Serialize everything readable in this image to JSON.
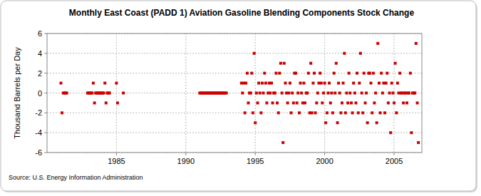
{
  "chart_data": {
    "type": "scatter",
    "title": "Monthly East Coast (PADD 1) Aviation Gasoline Blending Components Stock Change",
    "y_label": "Thousand Barrels per Day",
    "source": "Source: U.S. Energy Information Administration",
    "color": "#cc0000",
    "marker": "square",
    "grid": true,
    "xlim": [
      1980,
      2007
    ],
    "xticks": [
      1985,
      1990,
      1995,
      2000,
      2005
    ],
    "ylim": [
      -6,
      6
    ],
    "yticks": [
      -6,
      -4,
      -2,
      0,
      2,
      4,
      6
    ],
    "x": [
      1981,
      1981.08,
      1981.17,
      1981.25,
      1981.33,
      1981.42,
      1982.92,
      1983,
      1983.08,
      1983.17,
      1983.25,
      1983.33,
      1983.42,
      1983.5,
      1983.58,
      1983.67,
      1983.75,
      1983.83,
      1983.92,
      1984,
      1984.08,
      1984.17,
      1984.25,
      1984.33,
      1984.42,
      1984.5,
      1985,
      1985.08,
      1985.5,
      1991,
      1991.08,
      1991.17,
      1991.25,
      1991.33,
      1991.42,
      1991.5,
      1991.58,
      1991.67,
      1991.75,
      1991.83,
      1991.92,
      1992,
      1992.08,
      1992.17,
      1992.25,
      1992.33,
      1992.42,
      1992.5,
      1992.58,
      1992.67,
      1992.75,
      1992.83,
      1992.92,
      1994,
      1994.08,
      1994.17,
      1994.25,
      1994.33,
      1994.42,
      1994.5,
      1994.58,
      1994.67,
      1994.75,
      1994.83,
      1994.92,
      1995,
      1995.08,
      1995.17,
      1995.25,
      1995.33,
      1995.42,
      1995.5,
      1995.58,
      1995.67,
      1995.75,
      1995.83,
      1995.92,
      1996,
      1996.08,
      1996.17,
      1996.25,
      1996.33,
      1996.42,
      1996.5,
      1996.58,
      1996.67,
      1996.75,
      1996.83,
      1996.92,
      1997,
      1997.08,
      1997.17,
      1997.25,
      1997.33,
      1997.42,
      1997.5,
      1997.58,
      1997.67,
      1997.75,
      1997.83,
      1997.92,
      1998,
      1998.08,
      1998.17,
      1998.25,
      1998.33,
      1998.42,
      1998.5,
      1998.58,
      1998.67,
      1998.75,
      1998.83,
      1998.92,
      1999,
      1999.08,
      1999.17,
      1999.25,
      1999.33,
      1999.42,
      1999.5,
      1999.58,
      1999.67,
      1999.75,
      1999.83,
      1999.92,
      2000,
      2000.08,
      2000.17,
      2000.25,
      2000.33,
      2000.42,
      2000.5,
      2000.58,
      2000.67,
      2000.75,
      2000.83,
      2000.92,
      2001,
      2001.08,
      2001.17,
      2001.25,
      2001.33,
      2001.42,
      2001.5,
      2001.58,
      2001.67,
      2001.75,
      2001.83,
      2001.92,
      2002,
      2002.08,
      2002.17,
      2002.25,
      2002.33,
      2002.42,
      2002.5,
      2002.58,
      2002.67,
      2002.75,
      2002.83,
      2002.92,
      2003,
      2003.08,
      2003.17,
      2003.25,
      2003.33,
      2003.42,
      2003.5,
      2003.58,
      2003.67,
      2003.75,
      2003.83,
      2003.92,
      2004,
      2004.08,
      2004.17,
      2004.25,
      2004.33,
      2004.42,
      2004.5,
      2004.58,
      2004.67,
      2004.75,
      2004.83,
      2004.92,
      2005,
      2005.08,
      2005.17,
      2005.25,
      2005.33,
      2005.42,
      2005.5,
      2005.58,
      2005.67,
      2005.75,
      2005.83,
      2005.92,
      2006,
      2006.08,
      2006.17,
      2006.25,
      2006.33,
      2006.42,
      2006.5,
      2006.58,
      2006.67,
      2006.75
    ],
    "values": [
      1,
      -2,
      0,
      0,
      0,
      0,
      0,
      0,
      0,
      0,
      0,
      1,
      -1,
      0,
      0,
      0,
      0,
      0,
      0,
      0,
      0,
      1,
      -1,
      0,
      0,
      0,
      1,
      -1,
      0,
      0,
      0,
      0,
      0,
      0,
      0,
      0,
      0,
      0,
      0,
      0,
      0,
      0,
      0,
      0,
      0,
      0,
      0,
      0,
      0,
      0,
      0,
      0,
      0,
      1,
      0,
      1,
      -2,
      1,
      2,
      -1,
      0,
      0,
      2,
      -2,
      4,
      -3,
      0,
      -1,
      1,
      0,
      -2,
      1,
      0,
      2,
      1,
      -1,
      0,
      1,
      0,
      1,
      -1,
      0,
      0,
      2,
      -1,
      -2,
      2,
      3,
      0,
      -5,
      3,
      1,
      0,
      -1,
      0,
      1,
      -2,
      0,
      -1,
      2,
      2,
      -1,
      0,
      -2,
      1,
      0,
      -1,
      1,
      -1,
      0,
      0,
      2,
      -2,
      3,
      -2,
      1,
      2,
      -2,
      -1,
      0,
      1,
      2,
      1,
      -1,
      0,
      1,
      -3,
      -2,
      0,
      1,
      -1,
      0,
      -2,
      2,
      0,
      3,
      -3,
      1,
      0,
      -2,
      -1,
      1,
      4,
      -2,
      0,
      -1,
      2,
      0,
      -1,
      -2,
      1,
      0,
      -1,
      2,
      -2,
      1,
      4,
      0,
      -2,
      2,
      -1,
      0,
      -3,
      2,
      2,
      1,
      -2,
      2,
      -1,
      0,
      -3,
      5,
      1,
      -2,
      2,
      0,
      1,
      -2,
      1,
      2,
      -1,
      0,
      -4,
      1,
      0,
      -1,
      3,
      -2,
      1,
      0,
      2,
      0,
      0,
      -1,
      0,
      0,
      -1,
      0,
      0,
      2,
      -4,
      0,
      0,
      0,
      5,
      -1,
      -5
    ]
  }
}
